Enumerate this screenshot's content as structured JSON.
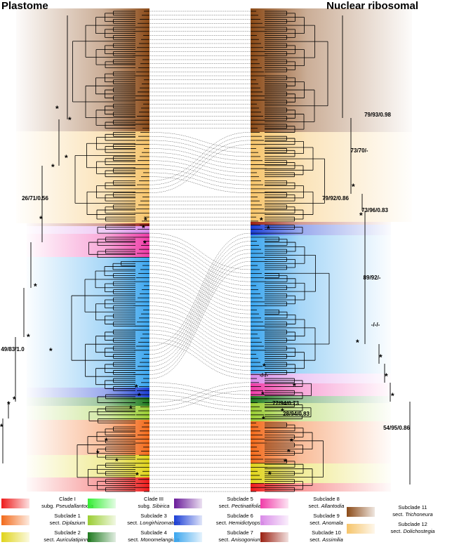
{
  "titles": {
    "left": "Plastome",
    "right": "Nuclear ribosomal"
  },
  "support_values": {
    "s1": "79/93/0.98",
    "s2": "73/70/-",
    "s3": "26/71/0.56",
    "s4": "79/92/0.86",
    "s5": "73/96/0.83",
    "s6": "89/92/-",
    "s7": "-/-/-",
    "s8": "49/83/1.0",
    "s9": "-/-/-",
    "s10": "77/94/0.73",
    "s11": "28/94/0.83",
    "s12": "54/95/0.86"
  },
  "star_symbol": "*",
  "colors": {
    "clade_I": "#ee1c1c",
    "subclade_1": "#f26a1b",
    "subclade_2": "#e0d41a",
    "clade_III": "#33ee33",
    "subclade_3": "#9acd32",
    "subclade_4": "#1f7a1f",
    "subclade_5": "#6a1b9a",
    "subclade_6": "#1c3fd6",
    "subclade_7": "#3aa5ee",
    "subclade_8": "#f03ca8",
    "subclade_9": "#d98ae8",
    "subclade_10": "#9a1f10",
    "subclade_11": "#8b4a17",
    "subclade_12": "#f6c46a"
  },
  "legend": [
    {
      "line1": "Clade I",
      "line2": "subg. ",
      "italic": "Pseudallantodia",
      "color_key": "clade_I"
    },
    {
      "line1": "Subclade 1",
      "line2": "sect. ",
      "italic": "Diplazium",
      "color_key": "subclade_1"
    },
    {
      "line1": "Subclade 2",
      "line2": "sect. ",
      "italic": "Auriculatipinna",
      "color_key": "subclade_2"
    },
    {
      "line1": "Clade III",
      "line2": "subg. ",
      "italic": "Sibirica",
      "color_key": "clade_III"
    },
    {
      "line1": "Subclade 3",
      "line2": "sect. ",
      "italic": "Longirhizomatum",
      "color_key": "subclade_3"
    },
    {
      "line1": "Subclade 4",
      "line2": "sect. ",
      "italic": "Monomelangium",
      "color_key": "subclade_4"
    },
    {
      "line1": "Subclade 5",
      "line2": "sect. ",
      "italic": "Pectinatifolia",
      "color_key": "subclade_5"
    },
    {
      "line1": "Subclade 6",
      "line2": "sect. ",
      "italic": "Hemidictyopsis",
      "color_key": "subclade_6"
    },
    {
      "line1": "Subclade 7",
      "line2": "sect. ",
      "italic": "Anisogonium",
      "color_key": "subclade_7"
    },
    {
      "line1": "Subclade 8",
      "line2": "sect. ",
      "italic": "Allantodia",
      "color_key": "subclade_8"
    },
    {
      "line1": "Subclade 9",
      "line2": "sect. ",
      "italic": "Anomala",
      "color_key": "subclade_9"
    },
    {
      "line1": "Subclade 10",
      "line2": "sect. ",
      "italic": "Assimilia",
      "color_key": "subclade_10"
    },
    {
      "line1": "Subclade 11",
      "line2": "sect. ",
      "italic": "Trichoneura",
      "color_key": "subclade_11"
    },
    {
      "line1": "Subclade 12",
      "line2": "sect. ",
      "italic": "Dolichostegia",
      "color_key": "subclade_12"
    }
  ]
}
